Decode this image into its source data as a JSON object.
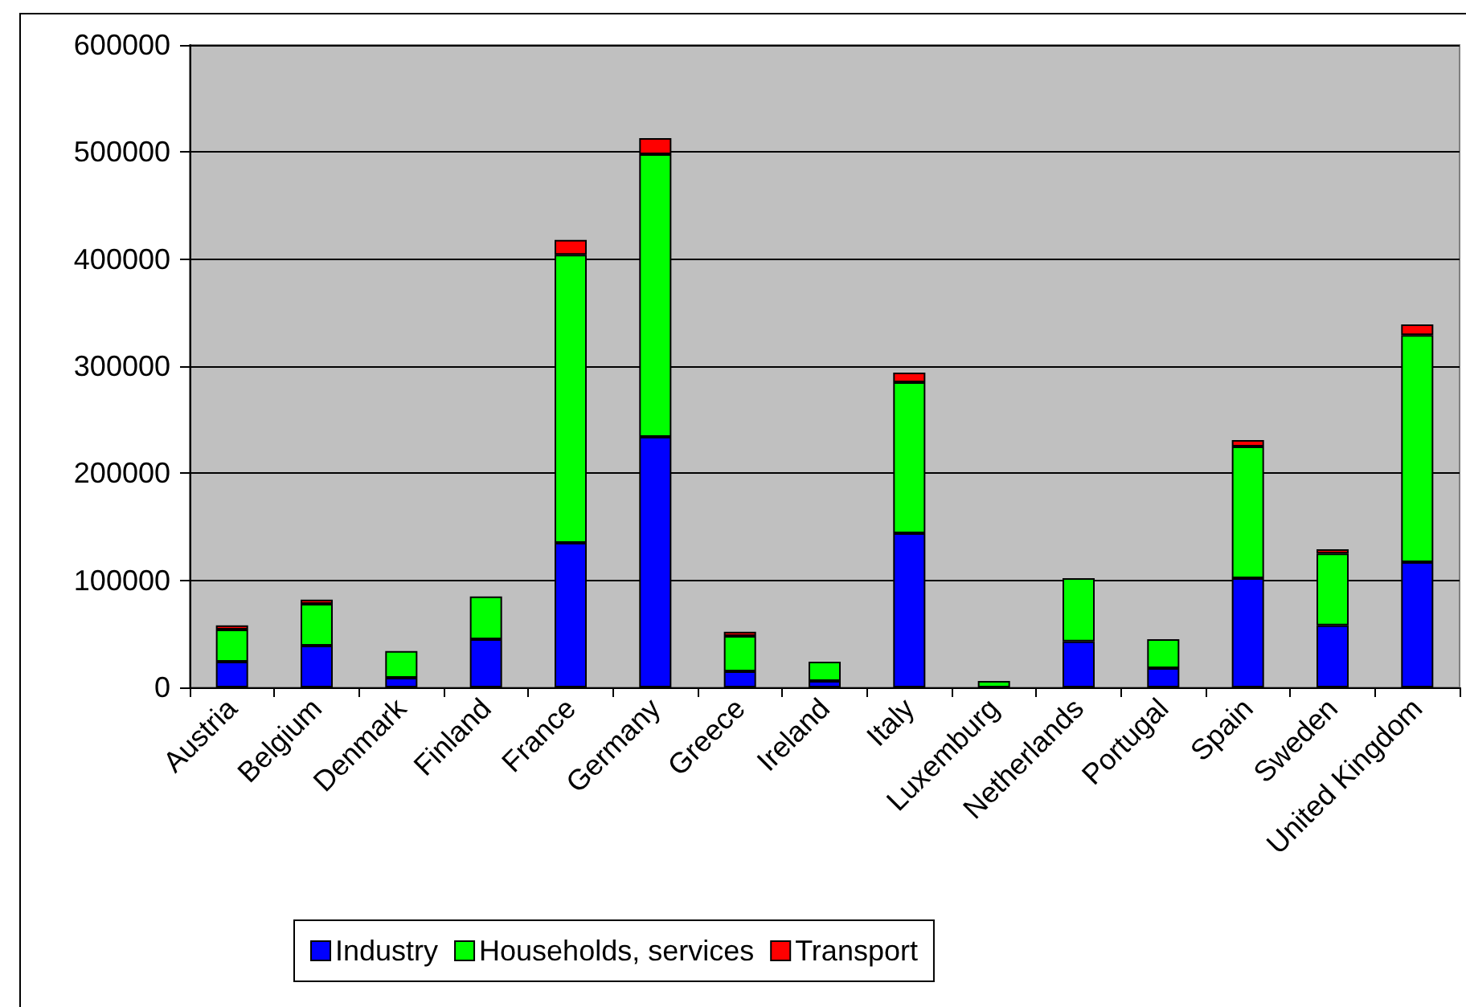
{
  "chart_data": {
    "type": "bar",
    "stacked": true,
    "categories": [
      "Austria",
      "Belgium",
      "Denmark",
      "Finland",
      "France",
      "Germany",
      "Greece",
      "Ireland",
      "Italy",
      "Luxemburg",
      "Netherlands",
      "Portugal",
      "Spain",
      "Sweden",
      "United Kingdom"
    ],
    "series": [
      {
        "name": "Industry",
        "color": "#0000ff",
        "values": [
          24000,
          39000,
          9000,
          45000,
          135000,
          234000,
          15000,
          6000,
          144000,
          0,
          43000,
          18000,
          102000,
          58000,
          117000
        ]
      },
      {
        "name": "Households, services",
        "color": "#00ff00",
        "values": [
          30000,
          39000,
          25000,
          40000,
          269000,
          264000,
          33000,
          18000,
          141000,
          6000,
          59000,
          27000,
          123000,
          67000,
          212000
        ]
      },
      {
        "name": "Transport",
        "color": "#ff0000",
        "values": [
          4000,
          4000,
          0,
          0,
          14000,
          15000,
          4000,
          0,
          9000,
          0,
          0,
          0,
          6000,
          4000,
          10000
        ]
      }
    ],
    "ylim": [
      0,
      600000
    ],
    "yticks": [
      0,
      100000,
      200000,
      300000,
      400000,
      500000,
      600000
    ],
    "grid": "y",
    "legend": "bottom"
  }
}
